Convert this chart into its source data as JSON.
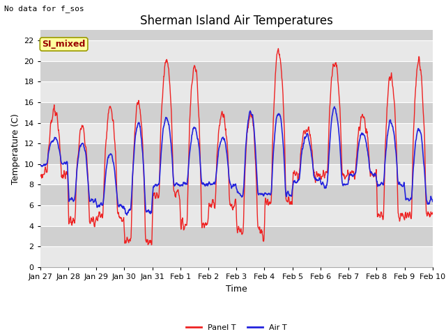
{
  "title": "Sherman Island Air Temperatures",
  "xlabel": "Time",
  "ylabel": "Temperature (C)",
  "no_data_text": "No data for f_sos",
  "annotation_text": "SI_mixed",
  "ylim": [
    0,
    23
  ],
  "yticks": [
    0,
    2,
    4,
    6,
    8,
    10,
    12,
    14,
    16,
    18,
    20,
    22
  ],
  "xtick_labels": [
    "Jan 27",
    "Jan 28",
    "Jan 29",
    "Jan 30",
    "Jan 31",
    "Feb 1",
    "Feb 2",
    "Feb 3",
    "Feb 4",
    "Feb 5",
    "Feb 6",
    "Feb 7",
    "Feb 8",
    "Feb 9",
    "Feb 10"
  ],
  "panel_T_color": "#EE2222",
  "air_T_color": "#2222DD",
  "bg_light": "#E8E8E8",
  "bg_dark": "#D0D0D0",
  "legend_panel_label": "Panel T",
  "legend_air_label": "Air T",
  "title_fontsize": 12,
  "axis_label_fontsize": 9,
  "tick_fontsize": 8,
  "annot_fontsize": 9,
  "no_data_fontsize": 8
}
